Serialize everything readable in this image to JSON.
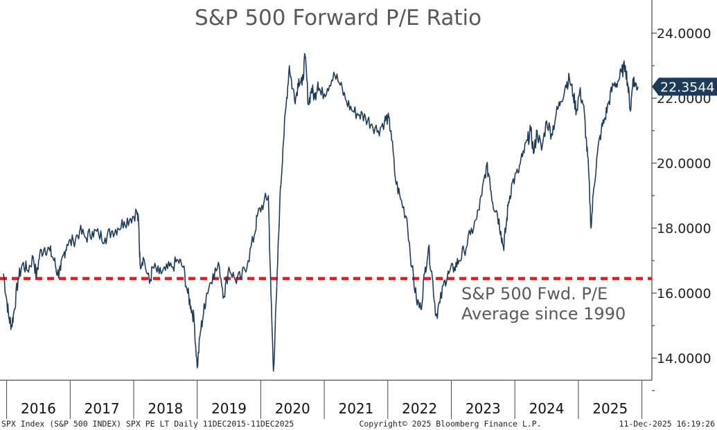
{
  "chart_data": {
    "type": "line",
    "title": "S&P 500 Forward P/E Ratio",
    "ylim": [
      12.8,
      25.2
    ],
    "y_ticks": [
      "24.0000",
      "22.0000",
      "20.0000",
      "18.0000",
      "16.0000",
      "14.0000"
    ],
    "y_tick_values": [
      24,
      22,
      20,
      18,
      16,
      14
    ],
    "x_range": [
      2015.95,
      2025.95
    ],
    "year_labels": [
      "2016",
      "2017",
      "2018",
      "2019",
      "2020",
      "2021",
      "2022",
      "2023",
      "2024",
      "2025"
    ],
    "series": [
      {
        "name": "SPX PE LT Daily",
        "color": "#1f3b5a",
        "points": [
          [
            2015.95,
            16.6
          ],
          [
            2016.0,
            15.8
          ],
          [
            2016.04,
            15.2
          ],
          [
            2016.08,
            15.0
          ],
          [
            2016.12,
            15.5
          ],
          [
            2016.18,
            16.4
          ],
          [
            2016.25,
            16.9
          ],
          [
            2016.33,
            16.7
          ],
          [
            2016.42,
            17.1
          ],
          [
            2016.47,
            16.5
          ],
          [
            2016.52,
            17.2
          ],
          [
            2016.6,
            17.4
          ],
          [
            2016.68,
            17.3
          ],
          [
            2016.75,
            17.0
          ],
          [
            2016.8,
            16.6
          ],
          [
            2016.85,
            16.7
          ],
          [
            2016.9,
            17.2
          ],
          [
            2016.95,
            17.5
          ],
          [
            2017.05,
            17.6
          ],
          [
            2017.15,
            17.9
          ],
          [
            2017.25,
            17.7
          ],
          [
            2017.35,
            17.9
          ],
          [
            2017.45,
            17.8
          ],
          [
            2017.55,
            17.7
          ],
          [
            2017.65,
            17.9
          ],
          [
            2017.75,
            18.0
          ],
          [
            2017.85,
            18.2
          ],
          [
            2017.95,
            18.3
          ],
          [
            2018.05,
            18.5
          ],
          [
            2018.08,
            18.1
          ],
          [
            2018.1,
            16.9
          ],
          [
            2018.15,
            17.1
          ],
          [
            2018.25,
            16.3
          ],
          [
            2018.3,
            16.8
          ],
          [
            2018.4,
            16.6
          ],
          [
            2018.5,
            16.7
          ],
          [
            2018.6,
            16.8
          ],
          [
            2018.7,
            17.0
          ],
          [
            2018.78,
            16.8
          ],
          [
            2018.85,
            16.0
          ],
          [
            2018.9,
            15.6
          ],
          [
            2018.95,
            15.2
          ],
          [
            2019.0,
            13.7
          ],
          [
            2019.05,
            14.8
          ],
          [
            2019.1,
            15.4
          ],
          [
            2019.15,
            16.0
          ],
          [
            2019.25,
            16.6
          ],
          [
            2019.35,
            16.8
          ],
          [
            2019.42,
            15.9
          ],
          [
            2019.5,
            16.8
          ],
          [
            2019.6,
            16.4
          ],
          [
            2019.7,
            16.5
          ],
          [
            2019.8,
            17.0
          ],
          [
            2019.9,
            17.8
          ],
          [
            2019.95,
            18.4
          ],
          [
            2020.05,
            18.8
          ],
          [
            2020.12,
            19.0
          ],
          [
            2020.16,
            16.0
          ],
          [
            2020.2,
            13.6
          ],
          [
            2020.25,
            16.0
          ],
          [
            2020.3,
            18.8
          ],
          [
            2020.35,
            20.5
          ],
          [
            2020.4,
            21.8
          ],
          [
            2020.45,
            23.0
          ],
          [
            2020.5,
            22.3
          ],
          [
            2020.55,
            22.0
          ],
          [
            2020.6,
            22.6
          ],
          [
            2020.65,
            22.4
          ],
          [
            2020.7,
            23.3
          ],
          [
            2020.75,
            21.8
          ],
          [
            2020.8,
            22.3
          ],
          [
            2020.85,
            22.0
          ],
          [
            2020.9,
            22.5
          ],
          [
            2020.95,
            22.1
          ],
          [
            2021.05,
            22.3
          ],
          [
            2021.15,
            22.8
          ],
          [
            2021.25,
            22.4
          ],
          [
            2021.35,
            21.9
          ],
          [
            2021.45,
            21.6
          ],
          [
            2021.55,
            21.5
          ],
          [
            2021.65,
            21.4
          ],
          [
            2021.75,
            21.2
          ],
          [
            2021.85,
            21.0
          ],
          [
            2021.95,
            21.3
          ],
          [
            2022.0,
            21.4
          ],
          [
            2022.05,
            21.0
          ],
          [
            2022.12,
            19.5
          ],
          [
            2022.2,
            18.9
          ],
          [
            2022.3,
            18.3
          ],
          [
            2022.38,
            16.8
          ],
          [
            2022.45,
            15.8
          ],
          [
            2022.52,
            15.5
          ],
          [
            2022.58,
            16.6
          ],
          [
            2022.64,
            17.4
          ],
          [
            2022.7,
            16.5
          ],
          [
            2022.76,
            15.3
          ],
          [
            2022.82,
            15.7
          ],
          [
            2022.9,
            16.4
          ],
          [
            2022.96,
            16.6
          ],
          [
            2023.05,
            16.8
          ],
          [
            2023.12,
            17.0
          ],
          [
            2023.2,
            17.3
          ],
          [
            2023.3,
            17.8
          ],
          [
            2023.4,
            18.3
          ],
          [
            2023.48,
            19.0
          ],
          [
            2023.55,
            19.9
          ],
          [
            2023.6,
            19.6
          ],
          [
            2023.65,
            18.8
          ],
          [
            2023.72,
            18.5
          ],
          [
            2023.78,
            17.9
          ],
          [
            2023.82,
            17.4
          ],
          [
            2023.86,
            18.0
          ],
          [
            2023.9,
            18.8
          ],
          [
            2023.96,
            19.4
          ],
          [
            2024.05,
            19.7
          ],
          [
            2024.12,
            20.2
          ],
          [
            2024.2,
            20.7
          ],
          [
            2024.25,
            21.0
          ],
          [
            2024.3,
            20.3
          ],
          [
            2024.35,
            21.0
          ],
          [
            2024.42,
            20.4
          ],
          [
            2024.5,
            21.3
          ],
          [
            2024.58,
            20.9
          ],
          [
            2024.65,
            21.5
          ],
          [
            2024.72,
            21.9
          ],
          [
            2024.8,
            22.4
          ],
          [
            2024.86,
            22.6
          ],
          [
            2024.92,
            22.1
          ],
          [
            2024.97,
            21.6
          ],
          [
            2025.02,
            22.2
          ],
          [
            2025.08,
            21.8
          ],
          [
            2025.12,
            20.8
          ],
          [
            2025.16,
            19.8
          ],
          [
            2025.2,
            18.0
          ],
          [
            2025.24,
            19.2
          ],
          [
            2025.3,
            20.3
          ],
          [
            2025.36,
            21.0
          ],
          [
            2025.42,
            21.4
          ],
          [
            2025.48,
            21.9
          ],
          [
            2025.55,
            22.4
          ],
          [
            2025.62,
            22.5
          ],
          [
            2025.68,
            22.8
          ],
          [
            2025.74,
            23.0
          ],
          [
            2025.78,
            22.4
          ],
          [
            2025.82,
            21.6
          ],
          [
            2025.86,
            22.6
          ],
          [
            2025.9,
            22.4
          ],
          [
            2025.94,
            22.3544
          ]
        ]
      }
    ],
    "reference_line": {
      "value": 16.45,
      "color": "#e02020",
      "label_line1": "S&P 500 Fwd. P/E",
      "label_line2": "Average since 1990"
    },
    "last_value_label": "22.3544",
    "last_value_color": "#1f3b5a"
  },
  "footer": {
    "left": "SPX Index (S&P 500 INDEX) SPX PE LT Daily 11DEC2015-11DEC2025",
    "center": "Copyright© 2025 Bloomberg Finance L.P.",
    "right": "11-Dec-2025 16:19:26"
  }
}
